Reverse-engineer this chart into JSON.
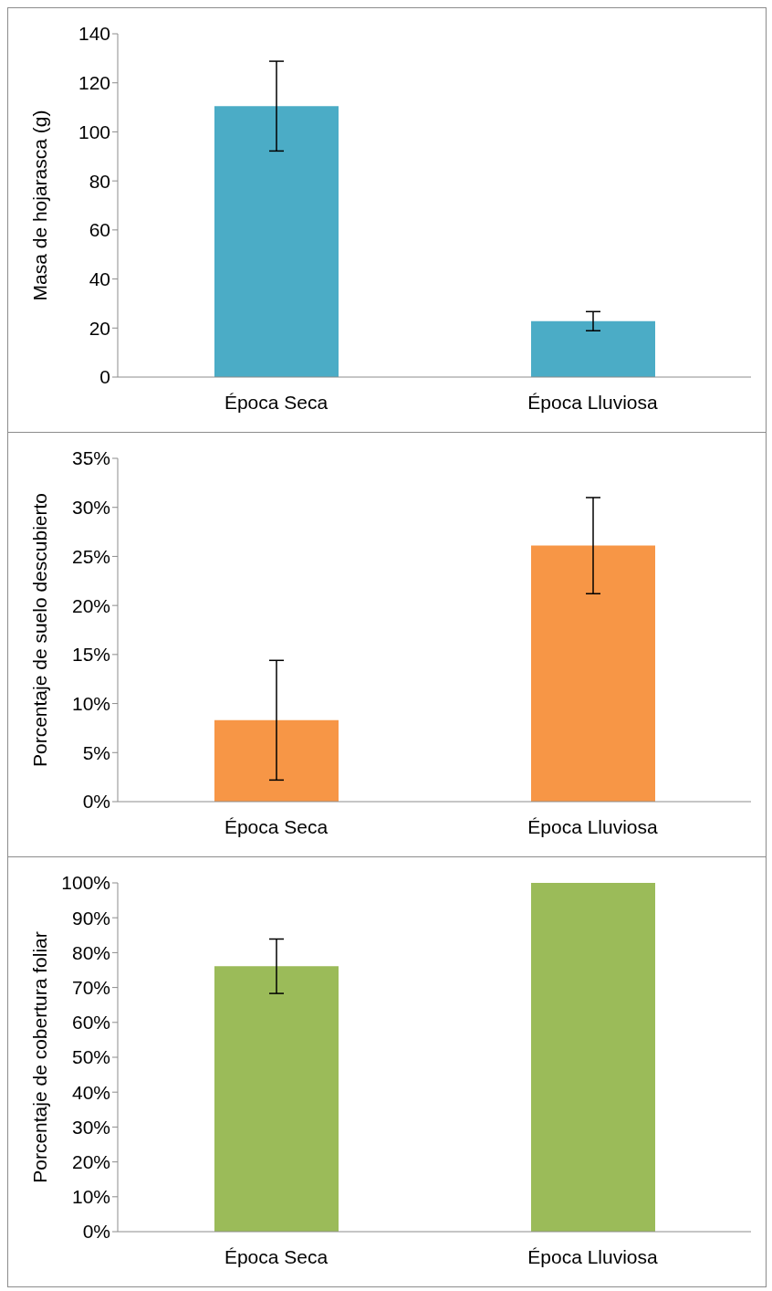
{
  "chart_data": [
    {
      "type": "bar",
      "ylabel": "Masa de hojarasca (g)",
      "categories": [
        "Época Seca",
        "Época Lluviosa"
      ],
      "values": [
        110.5,
        22.8
      ],
      "errors": [
        18.3,
        3.9
      ],
      "color": "#4bacc6",
      "ylim": [
        0,
        140
      ],
      "yticks": [
        0,
        20,
        40,
        60,
        80,
        100,
        120,
        140
      ],
      "grid": false,
      "legend": false
    },
    {
      "type": "bar",
      "ylabel": "Porcentaje de suelo descubierto",
      "categories": [
        "Época Seca",
        "Época Lluviosa"
      ],
      "values": [
        8.3,
        26.1
      ],
      "errors": [
        6.1,
        4.9
      ],
      "color": "#f79646",
      "ylim": [
        0,
        35
      ],
      "yticks": [
        {
          "value": 0,
          "label": "0%"
        },
        {
          "value": 5,
          "label": "5%"
        },
        {
          "value": 10,
          "label": "10%"
        },
        {
          "value": 15,
          "label": "15%"
        },
        {
          "value": 20,
          "label": "20%"
        },
        {
          "value": 25,
          "label": "25%"
        },
        {
          "value": 30,
          "label": "30%"
        },
        {
          "value": 35,
          "label": "35%"
        }
      ],
      "grid": false,
      "legend": false
    },
    {
      "type": "bar",
      "ylabel": "Porcentaje de cobertura foliar",
      "categories": [
        "Época Seca",
        "Época Lluviosa"
      ],
      "values": [
        76.1,
        100
      ],
      "errors": [
        7.8,
        0
      ],
      "color": "#9bbb59",
      "ylim": [
        0,
        100
      ],
      "yticks": [
        {
          "value": 0,
          "label": "0%"
        },
        {
          "value": 10,
          "label": "10%"
        },
        {
          "value": 20,
          "label": "20%"
        },
        {
          "value": 30,
          "label": "30%"
        },
        {
          "value": 40,
          "label": "40%"
        },
        {
          "value": 50,
          "label": "50%"
        },
        {
          "value": 60,
          "label": "60%"
        },
        {
          "value": 70,
          "label": "70%"
        },
        {
          "value": 80,
          "label": "80%"
        },
        {
          "value": 90,
          "label": "90%"
        },
        {
          "value": 100,
          "label": "100%"
        }
      ],
      "grid": false,
      "legend": false
    }
  ]
}
